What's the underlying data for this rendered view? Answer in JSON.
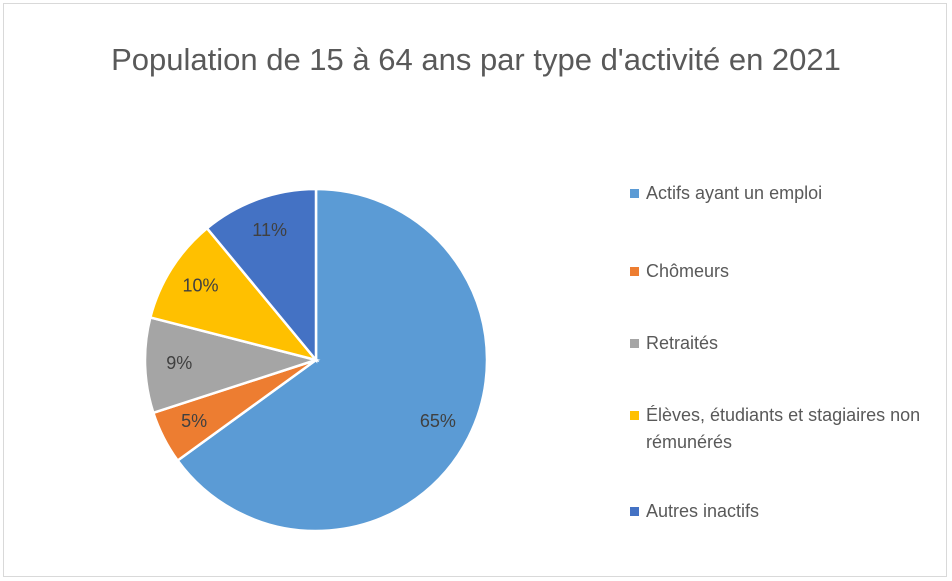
{
  "chart_data": {
    "type": "pie",
    "title": "Population de 15 à 64 ans par type d'activité en 2021",
    "categories": [
      "Actifs ayant un emploi",
      "Chômeurs",
      "Retraités",
      "Élèves, étudiants et stagiaires non rémunérés",
      "Autres inactifs"
    ],
    "values": [
      65,
      5,
      9,
      10,
      11
    ],
    "value_labels": [
      "65%",
      "5%",
      "9%",
      "10%",
      "11%"
    ],
    "colors": [
      "#5b9bd5",
      "#ed7d31",
      "#a5a5a5",
      "#ffc000",
      "#4472c4"
    ],
    "legend": "right"
  }
}
